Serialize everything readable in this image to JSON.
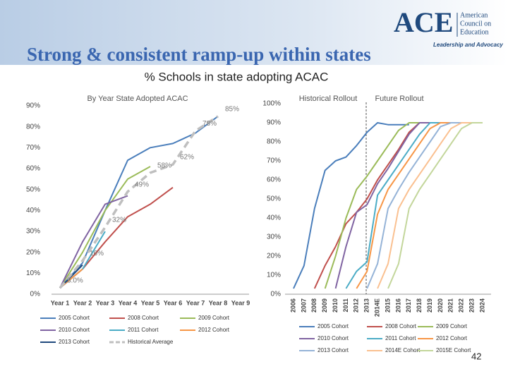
{
  "slide": {
    "title": "Strong & consistent ramp-up within states",
    "subtitle": "% Schools in state adopting ACAC",
    "logo": "ACE",
    "logo_name": [
      "American",
      "Council on",
      "Education"
    ],
    "tagline": "Leadership and Advocacy",
    "page_number": "42"
  },
  "chart_data": [
    {
      "type": "line",
      "annotations": [
        "By Year State Adopted ACAC"
      ],
      "categories": [
        "Year 1",
        "Year 2",
        "Year 3",
        "Year 4",
        "Year 5",
        "Year 6",
        "Year 7",
        "Year 8",
        "Year 9"
      ],
      "ylim": [
        0,
        90
      ],
      "yticks": [
        {
          "value": 0,
          "label": "0%"
        },
        {
          "value": 10,
          "label": "10%"
        },
        {
          "value": 20,
          "label": "20%"
        },
        {
          "value": 30,
          "label": "30%"
        },
        {
          "value": 40,
          "label": "40%"
        },
        {
          "value": 50,
          "label": "50%"
        },
        {
          "value": 60,
          "label": "60%"
        },
        {
          "value": 70,
          "label": "70%"
        },
        {
          "value": 80,
          "label": "80%"
        },
        {
          "value": 90,
          "label": "90%"
        }
      ],
      "legend": "bottom",
      "series": [
        {
          "name": "2005 Cohort",
          "color": "#4a7ebb",
          "values": [
            3,
            15,
            40,
            64,
            70,
            72,
            77,
            85,
            null
          ]
        },
        {
          "name": "2008 Cohort",
          "color": "#c0504d",
          "values": [
            3,
            12,
            25,
            37,
            43,
            51,
            null,
            null,
            null
          ]
        },
        {
          "name": "2009 Cohort",
          "color": "#9bbb59",
          "values": [
            3,
            20,
            40,
            55,
            61,
            null,
            null,
            null,
            null
          ]
        },
        {
          "name": "2010 Cohort",
          "color": "#8064a2",
          "values": [
            3,
            25,
            43,
            47,
            null,
            null,
            null,
            null,
            null
          ]
        },
        {
          "name": "2011 Cohort",
          "color": "#4bacc6",
          "values": [
            3,
            12,
            30,
            null,
            null,
            null,
            null,
            null,
            null
          ]
        },
        {
          "name": "2012 Cohort",
          "color": "#f79646",
          "values": [
            3,
            12,
            null,
            null,
            null,
            null,
            null,
            null,
            null
          ]
        },
        {
          "name": "2013 Cohort",
          "color": "#1f497d",
          "values": [
            3,
            14,
            null,
            null,
            null,
            null,
            null,
            null,
            null
          ]
        },
        {
          "name": "Historical Average",
          "color": "#bfbfbf",
          "dashed": true,
          "values": [
            3,
            16,
            32,
            49,
            58,
            62,
            78,
            85,
            null
          ],
          "value_labels": [
            "3.0%",
            "16%",
            "32%",
            "49%",
            "58%",
            "62%",
            "78%",
            "85%",
            null
          ]
        }
      ]
    },
    {
      "type": "line",
      "annotations": [
        "Historical Rollout",
        "Future Rollout"
      ],
      "categories": [
        "2006",
        "2007",
        "2008",
        "2009",
        "2010",
        "2011",
        "2012",
        "2013",
        "2014E",
        "2015",
        "2016",
        "2017",
        "2018",
        "2019",
        "2020",
        "2021",
        "2022",
        "2023",
        "2024"
      ],
      "ylim": [
        0,
        100
      ],
      "yticks": [
        {
          "value": 0,
          "label": "0%"
        },
        {
          "value": 10,
          "label": "10%"
        },
        {
          "value": 20,
          "label": "20%"
        },
        {
          "value": 30,
          "label": "30%"
        },
        {
          "value": 40,
          "label": "40%"
        },
        {
          "value": 50,
          "label": "50%"
        },
        {
          "value": 60,
          "label": "60%"
        },
        {
          "value": 70,
          "label": "70%"
        },
        {
          "value": 80,
          "label": "80%"
        },
        {
          "value": 90,
          "label": "90%"
        },
        {
          "value": 100,
          "label": "100%"
        }
      ],
      "legend": "bottom",
      "series": [
        {
          "name": "2005 Cohort",
          "color": "#4a7ebb",
          "values": [
            3,
            15,
            45,
            65,
            70,
            72,
            78,
            85,
            90,
            89,
            89,
            89,
            null,
            null,
            null,
            null,
            null,
            null,
            null
          ]
        },
        {
          "name": "2008 Cohort",
          "color": "#c0504d",
          "values": [
            null,
            null,
            3,
            15,
            25,
            37,
            43,
            50,
            60,
            68,
            76,
            85,
            90,
            90,
            null,
            null,
            null,
            null,
            null
          ]
        },
        {
          "name": "2009 Cohort",
          "color": "#9bbb59",
          "values": [
            null,
            null,
            null,
            3,
            20,
            40,
            55,
            62,
            70,
            78,
            86,
            90,
            90,
            null,
            null,
            null,
            null,
            null,
            null
          ]
        },
        {
          "name": "2010 Cohort",
          "color": "#8064a2",
          "values": [
            null,
            null,
            null,
            null,
            3,
            25,
            43,
            47,
            58,
            66,
            75,
            84,
            90,
            90,
            null,
            null,
            null,
            null,
            null
          ]
        },
        {
          "name": "2011 Cohort",
          "color": "#4bacc6",
          "values": [
            null,
            null,
            null,
            null,
            null,
            3,
            12,
            17,
            52,
            60,
            68,
            76,
            84,
            90,
            90,
            null,
            null,
            null,
            null
          ]
        },
        {
          "name": "2012 Cohort",
          "color": "#f79646",
          "values": [
            null,
            null,
            null,
            null,
            null,
            null,
            3,
            12,
            42,
            55,
            63,
            71,
            79,
            87,
            90,
            90,
            null,
            null,
            null
          ]
        },
        {
          "name": "2013 Cohort",
          "color": "#95b3d7",
          "values": [
            null,
            null,
            null,
            null,
            null,
            null,
            null,
            3,
            16,
            45,
            55,
            64,
            72,
            80,
            88,
            90,
            90,
            null,
            null
          ]
        },
        {
          "name": "2014E Cohort",
          "color": "#fac090",
          "values": [
            null,
            null,
            null,
            null,
            null,
            null,
            null,
            null,
            3,
            16,
            45,
            55,
            63,
            71,
            79,
            87,
            90,
            90,
            null
          ]
        },
        {
          "name": "2015E Cohort",
          "color": "#c3d69b",
          "values": [
            null,
            null,
            null,
            null,
            null,
            null,
            null,
            null,
            null,
            3,
            16,
            45,
            55,
            63,
            71,
            79,
            87,
            90,
            90
          ]
        }
      ]
    }
  ]
}
